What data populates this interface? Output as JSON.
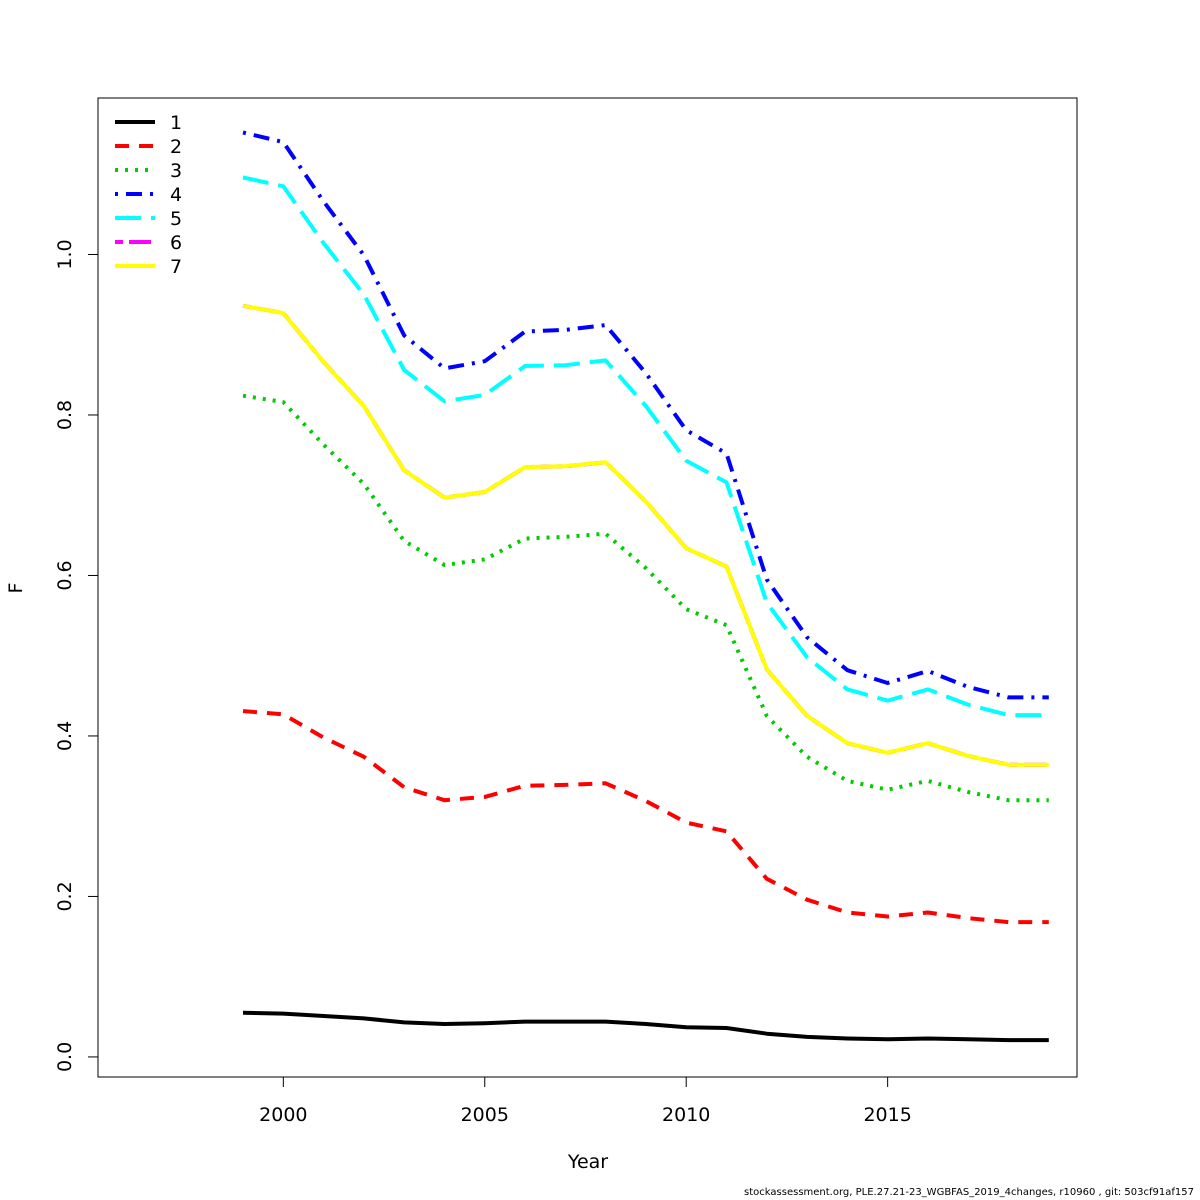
{
  "chart_data": {
    "type": "line",
    "title": "",
    "xlabel": "Year",
    "ylabel": "F",
    "xlim": [
      1995.4,
      2019.7
    ],
    "ylim": [
      -0.025,
      1.195
    ],
    "x_ticks": [
      2000,
      2005,
      2010,
      2015
    ],
    "x_tick_labels": [
      "2000",
      "2005",
      "2010",
      "2015"
    ],
    "y_ticks": [
      0.0,
      0.2,
      0.4,
      0.6,
      0.8,
      1.0
    ],
    "y_tick_labels": [
      "0.0",
      "0.2",
      "0.4",
      "0.6",
      "0.8",
      "1.0"
    ],
    "grid": false,
    "legend_position": "top-left",
    "x": [
      1999,
      2000,
      2001,
      2002,
      2003,
      2004,
      2005,
      2006,
      2007,
      2008,
      2009,
      2010,
      2011,
      2012,
      2013,
      2014,
      2015,
      2016,
      2017,
      2018,
      2019
    ],
    "series": [
      {
        "name": "1",
        "color": "#000000",
        "dash": "solid",
        "values": [
          0.055,
          0.054,
          0.051,
          0.048,
          0.043,
          0.041,
          0.042,
          0.044,
          0.044,
          0.044,
          0.041,
          0.037,
          0.036,
          0.029,
          0.025,
          0.023,
          0.022,
          0.023,
          0.022,
          0.021,
          0.021
        ]
      },
      {
        "name": "2",
        "color": "#ff0000",
        "dash": "dashed",
        "values": [
          0.431,
          0.427,
          0.398,
          0.374,
          0.336,
          0.32,
          0.324,
          0.338,
          0.339,
          0.341,
          0.319,
          0.292,
          0.281,
          0.222,
          0.196,
          0.18,
          0.175,
          0.18,
          0.173,
          0.168,
          0.168
        ]
      },
      {
        "name": "3",
        "color": "#00cd00",
        "dash": "dotted",
        "values": [
          0.824,
          0.816,
          0.763,
          0.714,
          0.643,
          0.613,
          0.62,
          0.646,
          0.648,
          0.652,
          0.609,
          0.558,
          0.538,
          0.425,
          0.374,
          0.344,
          0.333,
          0.344,
          0.33,
          0.32,
          0.32
        ]
      },
      {
        "name": "4",
        "color": "#0000ff",
        "dash": "dotdash",
        "values": [
          1.152,
          1.14,
          1.066,
          0.999,
          0.899,
          0.858,
          0.867,
          0.904,
          0.906,
          0.912,
          0.852,
          0.781,
          0.752,
          0.595,
          0.523,
          0.482,
          0.466,
          0.481,
          0.461,
          0.448,
          0.448
        ]
      },
      {
        "name": "5",
        "color": "#00ffff",
        "dash": "longdash",
        "values": [
          1.096,
          1.085,
          1.014,
          0.95,
          0.856,
          0.817,
          0.825,
          0.861,
          0.862,
          0.868,
          0.811,
          0.743,
          0.716,
          0.566,
          0.498,
          0.458,
          0.444,
          0.458,
          0.439,
          0.426,
          0.426
        ]
      },
      {
        "name": "6",
        "color": "#ff00ff",
        "dash": "twodash",
        "values": [
          0.936,
          0.927,
          0.866,
          0.811,
          0.731,
          0.697,
          0.704,
          0.735,
          0.736,
          0.741,
          0.692,
          0.634,
          0.611,
          0.483,
          0.425,
          0.391,
          0.379,
          0.391,
          0.375,
          0.364,
          0.364
        ]
      },
      {
        "name": "7",
        "color": "#ffff00",
        "dash": "solid",
        "values": [
          0.936,
          0.927,
          0.866,
          0.811,
          0.731,
          0.697,
          0.704,
          0.735,
          0.736,
          0.741,
          0.692,
          0.634,
          0.611,
          0.483,
          0.425,
          0.391,
          0.379,
          0.391,
          0.375,
          0.364,
          0.364
        ]
      }
    ]
  },
  "footer_text": "stockassessment.org, PLE.27.21-23_WGBFAS_2019_4changes, r10960 , git: 503cf91af157"
}
